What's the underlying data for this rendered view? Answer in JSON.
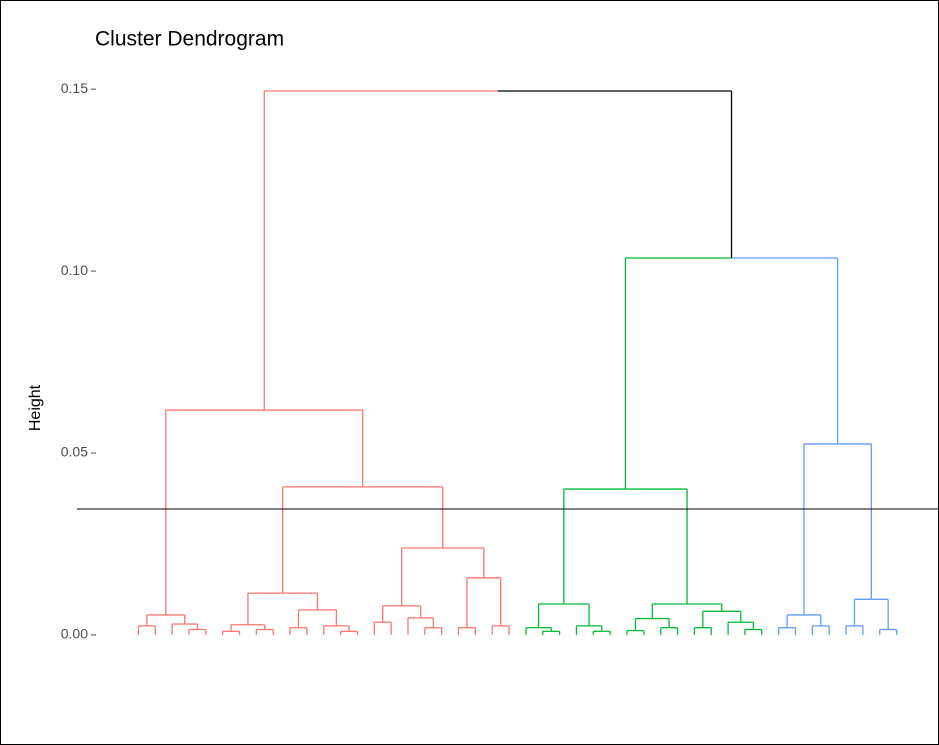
{
  "chart_data": {
    "type": "dendrogram",
    "title": "Cluster Dendrogram",
    "y_label": "Height",
    "ylim": [
      -0.0165,
      0.1745
    ],
    "yticks": [
      {
        "value": 0,
        "label": "0.00"
      },
      {
        "value": 0.05,
        "label": "0.05"
      },
      {
        "value": 0.1,
        "label": "0.10"
      },
      {
        "value": 0.15,
        "label": "0.15"
      }
    ],
    "cut_height": 0.0346,
    "tree": {
      "height": 0.1495,
      "children": [
        {
          "height": 0.0618,
          "color": "#F8766D",
          "children": [
            {
              "height": 0.0055,
              "children": [
                {
                  "height": 0.0025,
                  "children": [
                    0,
                    0
                  ]
                },
                {
                  "height": 0.003,
                  "children": [
                    0,
                    {
                      "height": 0.0015,
                      "children": [
                        0,
                        0
                      ]
                    }
                  ]
                }
              ]
            },
            {
              "height": 0.0407,
              "children": [
                {
                  "height": 0.0115,
                  "children": [
                    {
                      "height": 0.0028,
                      "children": [
                        {
                          "height": 0.001,
                          "children": [
                            0,
                            0
                          ]
                        },
                        {
                          "height": 0.0015,
                          "children": [
                            0,
                            0
                          ]
                        }
                      ]
                    },
                    {
                      "height": 0.0069,
                      "children": [
                        {
                          "height": 0.002,
                          "children": [
                            0,
                            0
                          ]
                        },
                        {
                          "height": 0.0025,
                          "children": [
                            0,
                            {
                              "height": 0.001,
                              "children": [
                                0,
                                0
                              ]
                            }
                          ]
                        }
                      ]
                    }
                  ]
                },
                {
                  "height": 0.0239,
                  "children": [
                    {
                      "height": 0.008,
                      "children": [
                        {
                          "height": 0.0035,
                          "children": [
                            0,
                            0
                          ]
                        },
                        {
                          "height": 0.0047,
                          "children": [
                            0,
                            {
                              "height": 0.002,
                              "children": [
                                0,
                                0
                              ]
                            }
                          ]
                        }
                      ]
                    },
                    {
                      "height": 0.0157,
                      "children": [
                        {
                          "height": 0.002,
                          "children": [
                            0,
                            0
                          ]
                        },
                        {
                          "height": 0.0025,
                          "children": [
                            0,
                            0
                          ]
                        }
                      ]
                    }
                  ]
                }
              ]
            }
          ]
        },
        {
          "height": 0.1036,
          "color": "#000000",
          "children": [
            {
              "height": 0.0401,
              "color": "#00BA38",
              "children": [
                {
                  "height": 0.0085,
                  "children": [
                    {
                      "height": 0.002,
                      "children": [
                        0,
                        {
                          "height": 0.001,
                          "children": [
                            0,
                            0
                          ]
                        }
                      ]
                    },
                    {
                      "height": 0.0025,
                      "children": [
                        0,
                        {
                          "height": 0.001,
                          "children": [
                            0,
                            0
                          ]
                        }
                      ]
                    }
                  ]
                },
                {
                  "height": 0.0085,
                  "children": [
                    {
                      "height": 0.0045,
                      "children": [
                        {
                          "height": 0.0012,
                          "children": [
                            0,
                            0
                          ]
                        },
                        {
                          "height": 0.002,
                          "children": [
                            0,
                            0
                          ]
                        }
                      ]
                    },
                    {
                      "height": 0.0065,
                      "children": [
                        {
                          "height": 0.002,
                          "children": [
                            0,
                            0
                          ]
                        },
                        {
                          "height": 0.0035,
                          "children": [
                            0,
                            {
                              "height": 0.0015,
                              "children": [
                                0,
                                0
                              ]
                            }
                          ]
                        }
                      ]
                    }
                  ]
                }
              ]
            },
            {
              "height": 0.0525,
              "color": "#619CFF",
              "children": [
                {
                  "height": 0.0055,
                  "children": [
                    {
                      "height": 0.002,
                      "children": [
                        0,
                        0
                      ]
                    },
                    {
                      "height": 0.0025,
                      "children": [
                        0,
                        0
                      ]
                    }
                  ]
                },
                {
                  "height": 0.0098,
                  "children": [
                    {
                      "height": 0.0025,
                      "children": [
                        0,
                        0
                      ]
                    },
                    {
                      "height": 0.0015,
                      "children": [
                        0,
                        0
                      ]
                    }
                  ]
                }
              ]
            }
          ]
        }
      ]
    }
  }
}
